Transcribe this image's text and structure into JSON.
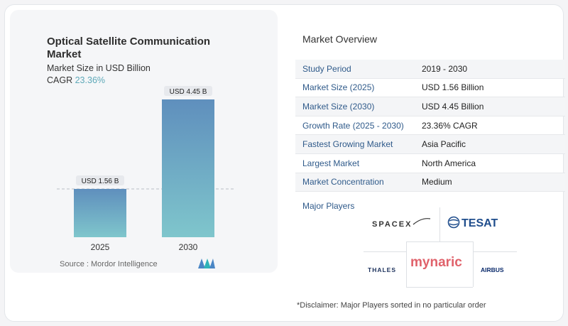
{
  "chart": {
    "title": "Optical Satellite Communication Market",
    "subtitle": "Market Size in USD Billion",
    "cagr_label": "CAGR",
    "cagr_value": "23.36%",
    "source": "Source :  Mordor Intelligence"
  },
  "chart_data": {
    "type": "bar",
    "categories": [
      "2025",
      "2030"
    ],
    "values": [
      1.56,
      4.45
    ],
    "data_labels": [
      "USD 1.56 B",
      "USD 4.45 B"
    ],
    "title": "Optical Satellite Communication Market",
    "ylabel": "Market Size in USD Billion",
    "ylim": [
      0,
      4.45
    ],
    "colors": {
      "top": "#5f8fbd",
      "bottom": "#7fc6cc"
    }
  },
  "overview": {
    "title": "Market Overview",
    "rows": [
      {
        "key": "Study Period",
        "value": "2019 - 2030"
      },
      {
        "key": "Market Size (2025)",
        "value": "USD 1.56 Billion"
      },
      {
        "key": "Market Size (2030)",
        "value": "USD 4.45 Billion"
      },
      {
        "key": "Growth Rate (2025 - 2030)",
        "value": "23.36% CAGR"
      },
      {
        "key": "Fastest Growing Market",
        "value": "Asia Pacific"
      },
      {
        "key": "Largest Market",
        "value": "North America"
      },
      {
        "key": "Market Concentration",
        "value": "Medium"
      }
    ]
  },
  "players": {
    "title": "Major Players",
    "logos": [
      "SPACEX",
      "TESAT",
      "THALES",
      "mynaric",
      "AIRBUS"
    ]
  },
  "disclaimer": "*Disclaimer: Major Players sorted in no particular order"
}
